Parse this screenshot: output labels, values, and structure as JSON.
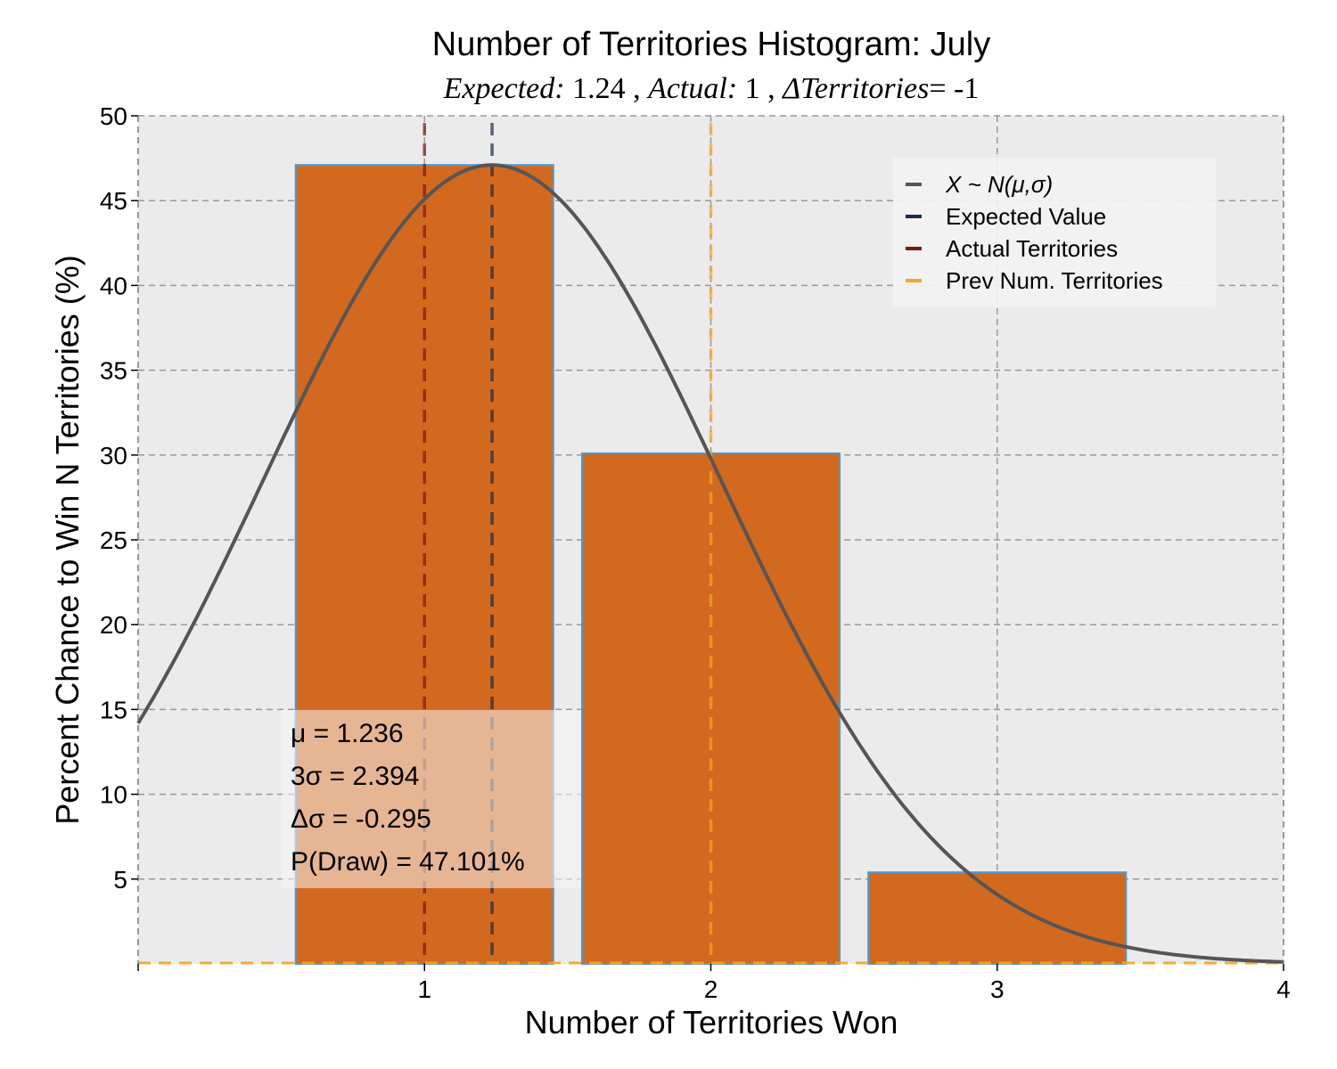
{
  "chart_data": {
    "type": "bar",
    "title": "Number of Territories Histogram: July",
    "subtitle": {
      "expected_label": "Expected:",
      "expected_value": "1.24",
      "actual_label": "Actual:",
      "actual_value": "1",
      "delta_label": "ΔTerritories",
      "delta_value": "= -1",
      "sep": ","
    },
    "xlabel": "Number of Territories Won",
    "ylabel": "Percent Chance to Win N Territories (%)",
    "xlim": [
      0,
      4
    ],
    "ylim": [
      0,
      50
    ],
    "x_ticks": [
      1,
      2,
      3,
      4
    ],
    "y_ticks": [
      5,
      10,
      15,
      20,
      25,
      30,
      35,
      40,
      45,
      50
    ],
    "grid": true,
    "bars": {
      "categories": [
        1,
        2,
        3
      ],
      "values": [
        47.1,
        30.1,
        5.4
      ],
      "bar_width": 0.9,
      "color": "#d2691e",
      "edge_color": "#4a9ad8"
    },
    "normal_curve": {
      "mu": 1.236,
      "sigma": 0.798,
      "peak": 47.1,
      "color": "#555555"
    },
    "vlines": [
      {
        "name": "Expected Value",
        "x": 1.236,
        "color": "#1b2a4a"
      },
      {
        "name": "Actual Territories",
        "x": 1,
        "color": "#7a1a10"
      },
      {
        "name": "Prev Num. Territories",
        "x": 2,
        "color": "#f5a623"
      }
    ],
    "legend": {
      "location": "top-right",
      "entries": [
        {
          "label": "X ~ N(μ,σ)",
          "color": "#555555",
          "italic": true
        },
        {
          "label": "Expected Value",
          "color": "#1b2a4a"
        },
        {
          "label": "Actual Territories",
          "color": "#7a1a10"
        },
        {
          "label": "Prev Num. Territories",
          "color": "#f5a623"
        }
      ]
    },
    "stats_box": {
      "lines": [
        "μ = 1.236",
        "3σ = 2.394",
        "Δσ = -0.295",
        "P(Draw) = 47.101%"
      ]
    },
    "colors": {
      "background": "#ebebeb",
      "grid": "#999999"
    }
  }
}
